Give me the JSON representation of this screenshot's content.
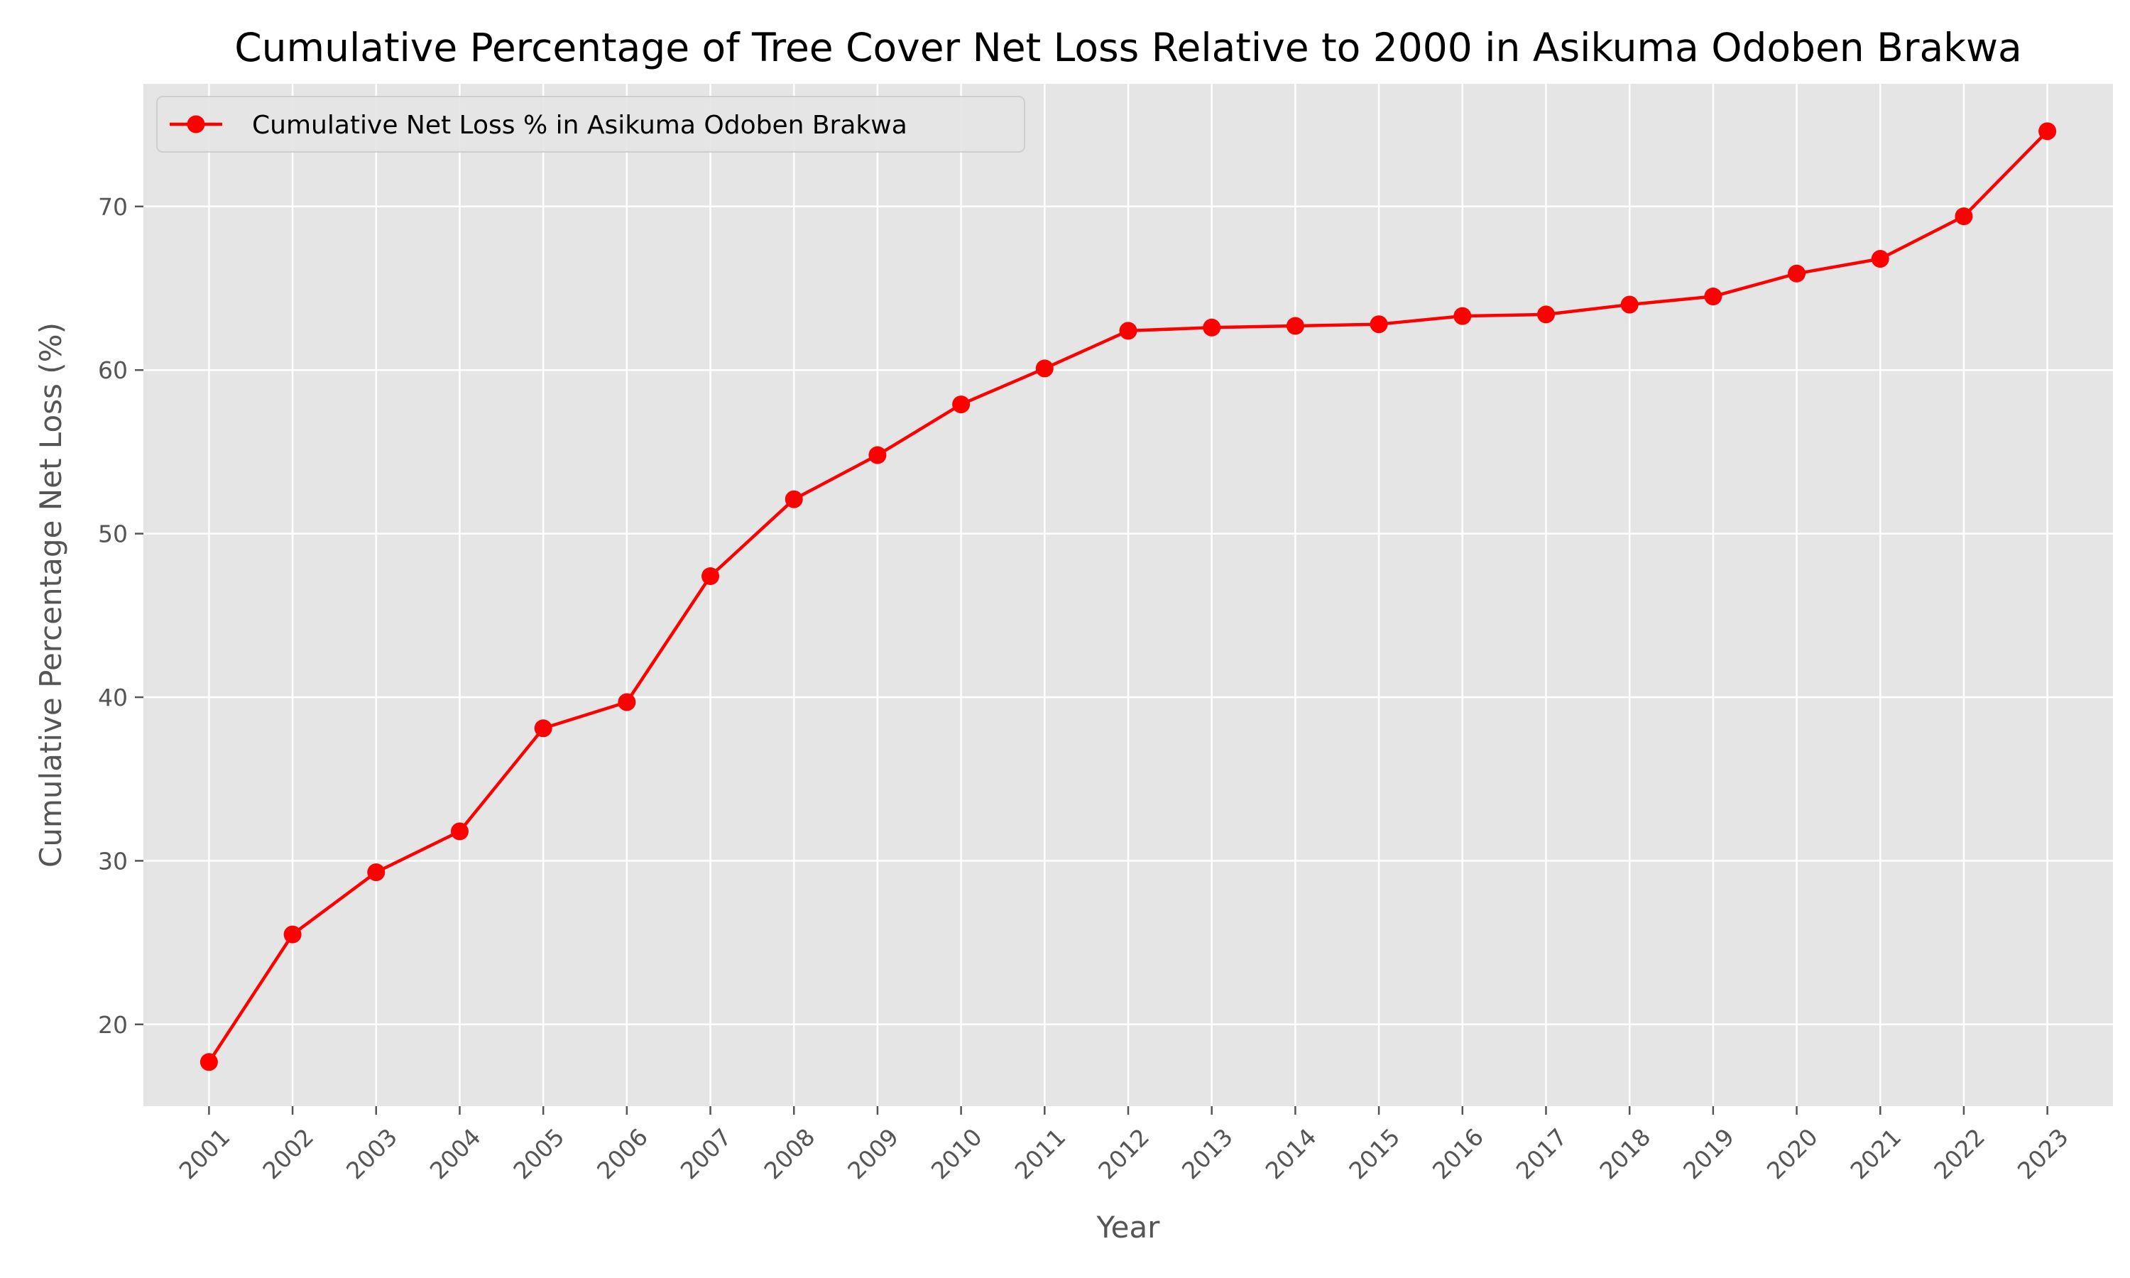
{
  "chart_data": {
    "type": "line",
    "title": "Cumulative Percentage of Tree Cover Net Loss Relative to 2000 in Asikuma Odoben Brakwa",
    "xlabel": "Year",
    "ylabel": "Cumulative Percentage Net Loss (%)",
    "x": [
      "2001",
      "2002",
      "2003",
      "2004",
      "2005",
      "2006",
      "2007",
      "2008",
      "2009",
      "2010",
      "2011",
      "2012",
      "2013",
      "2014",
      "2015",
      "2016",
      "2017",
      "2018",
      "2019",
      "2020",
      "2021",
      "2022",
      "2023"
    ],
    "series": [
      {
        "name": "Cumulative Net Loss % in Asikuma Odoben Brakwa",
        "color": "#ff0000",
        "marker": "circle",
        "values": [
          17.7,
          25.5,
          29.3,
          31.8,
          38.1,
          39.7,
          47.4,
          52.1,
          54.8,
          57.9,
          60.1,
          62.4,
          62.6,
          62.7,
          62.8,
          63.3,
          63.4,
          64.0,
          64.5,
          65.9,
          66.8,
          69.4,
          74.6
        ]
      }
    ],
    "ylim": [
      15.0,
      77.5
    ],
    "yticks": [
      20,
      30,
      40,
      50,
      60,
      70
    ],
    "grid": true,
    "legend_position": "top-left",
    "background": "#e5e5e5",
    "grid_color": "#ffffff"
  }
}
